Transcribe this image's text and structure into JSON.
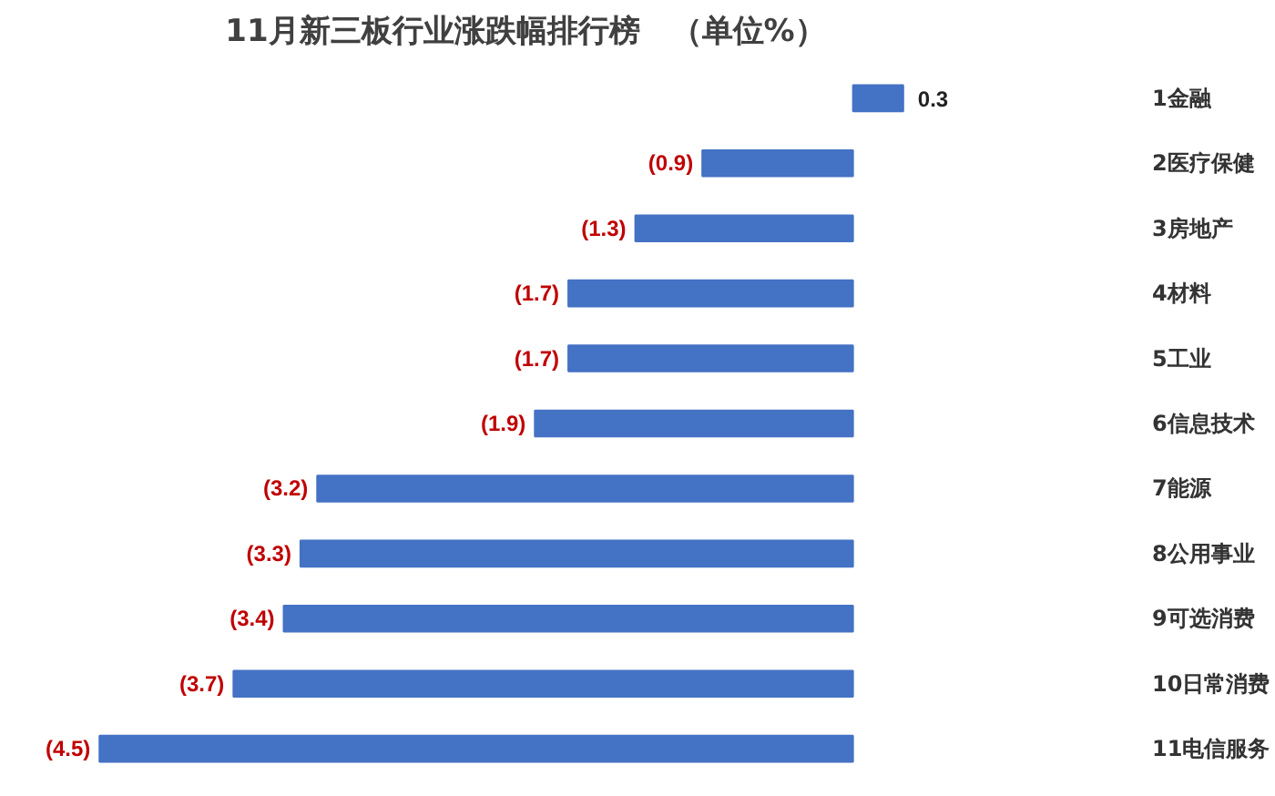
{
  "chart_data": {
    "type": "bar",
    "orientation": "horizontal",
    "title": "11月新三板行业涨跌幅排行榜　（单位%）",
    "categories": [
      "1金融",
      "2医疗保健",
      "3房地产",
      "4材料",
      "5工业",
      "6信息技术",
      "7能源",
      "8公用事业",
      "9可选消费",
      "10日常消费",
      "11电信服务"
    ],
    "values": [
      0.3,
      -0.9,
      -1.3,
      -1.7,
      -1.7,
      -1.9,
      -3.2,
      -3.3,
      -3.4,
      -3.7,
      -4.5
    ],
    "color": "#4472c4",
    "value_labels": [
      "0.3",
      "(0.9)",
      "(1.3)",
      "(1.7)",
      "(1.7)",
      "(1.9)",
      "(3.2)",
      "(3.3)",
      "(3.4)",
      "(3.7)",
      "(4.5)"
    ],
    "grid": false
  }
}
